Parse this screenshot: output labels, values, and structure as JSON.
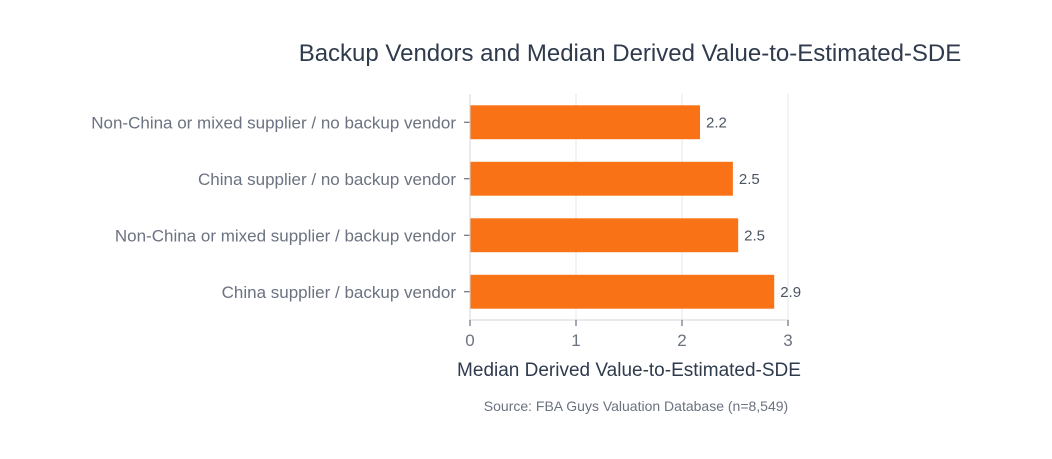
{
  "chart_data": {
    "type": "bar",
    "orientation": "horizontal",
    "title": "Backup Vendors and Median Derived Value-to-Estimated-SDE",
    "categories": [
      "Non-China or mixed supplier / no backup vendor",
      "China supplier / no backup vendor",
      "Non-China or mixed supplier / backup vendor",
      "China supplier / backup vendor"
    ],
    "values": [
      2.17,
      2.48,
      2.53,
      2.87
    ],
    "value_labels": [
      "2.2",
      "2.5",
      "2.5",
      "2.9"
    ],
    "xlabel": "Median Derived Value-to-Estimated-SDE",
    "ylabel": "",
    "xlim": [
      0,
      3
    ],
    "xticks": [
      "0",
      "1",
      "2",
      "3"
    ],
    "grid": true,
    "bar_color": "#f97316",
    "source": "Source: FBA Guys Valuation Database (n=8,549)"
  }
}
